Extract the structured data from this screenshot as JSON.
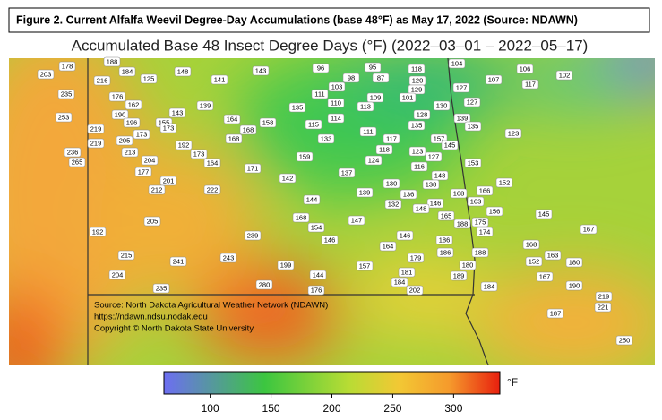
{
  "figure_caption": "Figure 2. Current Alfalfa Weevil Degree-Day Accumulations (base 48°F) as May 17, 2022 (Source: NDAWN)",
  "map": {
    "title": "Accumulated Base 48 Insect Degree Days (°F) (2022–03–01 – 2022–05–17)",
    "source_lines": [
      "Source: North Dakota Agricultural Weather Network (NDAWN)",
      "https://ndawn.ndsu.nodak.edu",
      "Copyright © North Dakota State University"
    ],
    "station_values": [
      178,
      188,
      203,
      184,
      216,
      125,
      148,
      141,
      143,
      96,
      95,
      118,
      104,
      106,
      102,
      98,
      87,
      120,
      107,
      117,
      235,
      103,
      129,
      127,
      176,
      111,
      109,
      101,
      162,
      139,
      135,
      110,
      113,
      130,
      127,
      253,
      190,
      143,
      114,
      128,
      139,
      196,
      155,
      164,
      158,
      115,
      135,
      135,
      219,
      173,
      168,
      111,
      123,
      173,
      205,
      117,
      157,
      219,
      168,
      133,
      145,
      192,
      236,
      213,
      173,
      118,
      123,
      127,
      265,
      204,
      164,
      159,
      124,
      116,
      153,
      171,
      177,
      137,
      148,
      142,
      201,
      130,
      138,
      152,
      212,
      222,
      139,
      136,
      168,
      166,
      144,
      132,
      146,
      163,
      148,
      156,
      145,
      168,
      147,
      165,
      188,
      175,
      205,
      154,
      174,
      167,
      192,
      239,
      146,
      146,
      186,
      164,
      168,
      215,
      179,
      186,
      188,
      163,
      241,
      243,
      199,
      157,
      180,
      152,
      180,
      204,
      144,
      181,
      189,
      167,
      184,
      235,
      280,
      176,
      202,
      184,
      190,
      219,
      221,
      187,
      250
    ]
  },
  "colorbar": {
    "lim": [
      62,
      338
    ],
    "ticks": [
      100,
      150,
      200,
      250,
      300
    ],
    "unit": "°F"
  }
}
